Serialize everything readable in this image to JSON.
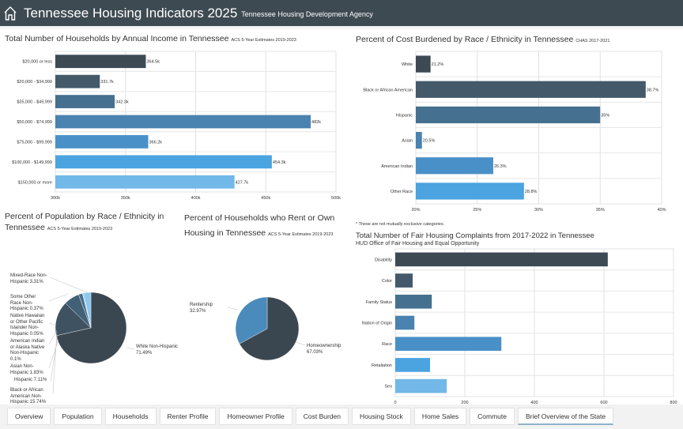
{
  "header": {
    "title": "Tennessee Housing Indicators 2025",
    "subtitle": "Tennessee Housing Development Agency",
    "icon": "home-icon"
  },
  "tabs": [
    {
      "label": "Overview",
      "active": false
    },
    {
      "label": "Population",
      "active": false
    },
    {
      "label": "Households",
      "active": false
    },
    {
      "label": "Renter Profile",
      "active": false
    },
    {
      "label": "Homeowner Profile",
      "active": false
    },
    {
      "label": "Cost Burden",
      "active": false
    },
    {
      "label": "Housing Stock",
      "active": false
    },
    {
      "label": "Home Sales",
      "active": false
    },
    {
      "label": "Commute",
      "active": false
    },
    {
      "label": "Brief Overview of the State",
      "active": true
    }
  ],
  "chart_data": [
    {
      "type": "bar",
      "orientation": "horizontal",
      "title": "Total Number of Households by Annual Income in Tennessee",
      "source": "ACS 5-Year Estimates 2019-2023",
      "categories": [
        "$20,000 or less",
        "$20,000 - $34,999",
        "$35,000 - $49,999",
        "$50,000 - $74,999",
        "$75,000 - $99,999",
        "$100,000 - $149,999",
        "$150,000 or more"
      ],
      "values": [
        364500,
        331700,
        342300,
        482000,
        366200,
        454300,
        427700
      ],
      "data_labels": [
        "364.5k",
        "331.7k",
        "342.3k",
        "482k",
        "366.2k",
        "454.3k",
        "427.7k"
      ],
      "xlim": [
        300000,
        500000
      ],
      "xticks": [
        "300k",
        "350k",
        "400k",
        "450k",
        "500k"
      ],
      "grid": true,
      "colors": [
        "#3d4a54",
        "#44596a",
        "#46708f",
        "#4a82b0",
        "#4a90c8",
        "#4ba3e0",
        "#72b8e8"
      ]
    },
    {
      "type": "bar",
      "orientation": "horizontal",
      "title": "Percent of Cost Burdened by Race / Ethnicity in Tennessee",
      "source": "CHAS 2017-2021",
      "categories": [
        "White",
        "Black or African American",
        "Hispanic",
        "Asian",
        "American Indian",
        "Other Race"
      ],
      "values": [
        21.2,
        38.7,
        35,
        20.5,
        26.3,
        28.8
      ],
      "data_labels": [
        "21.2%",
        "38.7%",
        "35%",
        "20.5%",
        "26.3%",
        "28.8%"
      ],
      "xlim": [
        20,
        40
      ],
      "xticks": [
        "20%",
        "25%",
        "30%",
        "35%",
        "40%"
      ],
      "grid": true,
      "footnote": "* These are not mutually exclusive categories.",
      "colors": [
        "#3d4a54",
        "#44596a",
        "#46708f",
        "#4a82b0",
        "#4a90c8",
        "#4ba3e0"
      ]
    },
    {
      "type": "pie",
      "title": "Percent of Population by Race / Ethnicity in",
      "title2": "Tennessee",
      "source": "ACS 5-Year Estimates 2019-2023",
      "slices": [
        {
          "label": "White Non-Hispanic 71.49%",
          "value": 71.49,
          "color": "#3b4750"
        },
        {
          "label": "Black or African American Non-Hispanic 15.74%",
          "value": 15.74,
          "color": "#3f5261"
        },
        {
          "label": "Hispanic 7.11%",
          "value": 7.11,
          "color": "#436176"
        },
        {
          "label": "Asian Non-Hispanic 1.83%",
          "value": 1.83,
          "color": "#46708f"
        },
        {
          "label": "American Indian or Alaska Native Non-Hispanic 0.1%",
          "value": 0.1,
          "color": "#4a80a8"
        },
        {
          "label": "Native Hawaiian or Other Pacific Islander Non-Hispanic 0.05%",
          "value": 0.05,
          "color": "#4a8cc0"
        },
        {
          "label": "Some Other Race Non-Hispanic 0.37%",
          "value": 0.37,
          "color": "#4b9ad6"
        },
        {
          "label": "Mixed-Race Non-Hispanic 3.31%",
          "value": 3.31,
          "color": "#8cc8f0"
        }
      ]
    },
    {
      "type": "pie",
      "title": "Percent of Households who Rent or Own",
      "title2": "Housing in Tennessee",
      "source": "ACS 5-Year Estimates 2019-2023",
      "slices": [
        {
          "label": "Homeownership 67.03%",
          "value": 67.03,
          "color": "#3b4750"
        },
        {
          "label": "Rentership 32.97%",
          "value": 32.97,
          "color": "#4a8bbb"
        }
      ]
    },
    {
      "type": "bar",
      "orientation": "horizontal",
      "title": "Total Number of Fair Housing Complaints from 2017-2022 in Tennessee",
      "source": "HUD Office of Fair Housing and Equal Opportunity",
      "categories": [
        "Disability",
        "Color",
        "Family Status",
        "Nation of Origin",
        "Race",
        "Retaliation",
        "Sex"
      ],
      "values": [
        611,
        50,
        105,
        55,
        305,
        100,
        148
      ],
      "xlim": [
        0,
        800
      ],
      "xticks": [
        "0",
        "200",
        "400",
        "600",
        "800"
      ],
      "grid": true,
      "colors": [
        "#3d4a54",
        "#44596a",
        "#46708f",
        "#4a82b0",
        "#4a90c8",
        "#4ba3e0",
        "#72b8e8"
      ]
    }
  ]
}
